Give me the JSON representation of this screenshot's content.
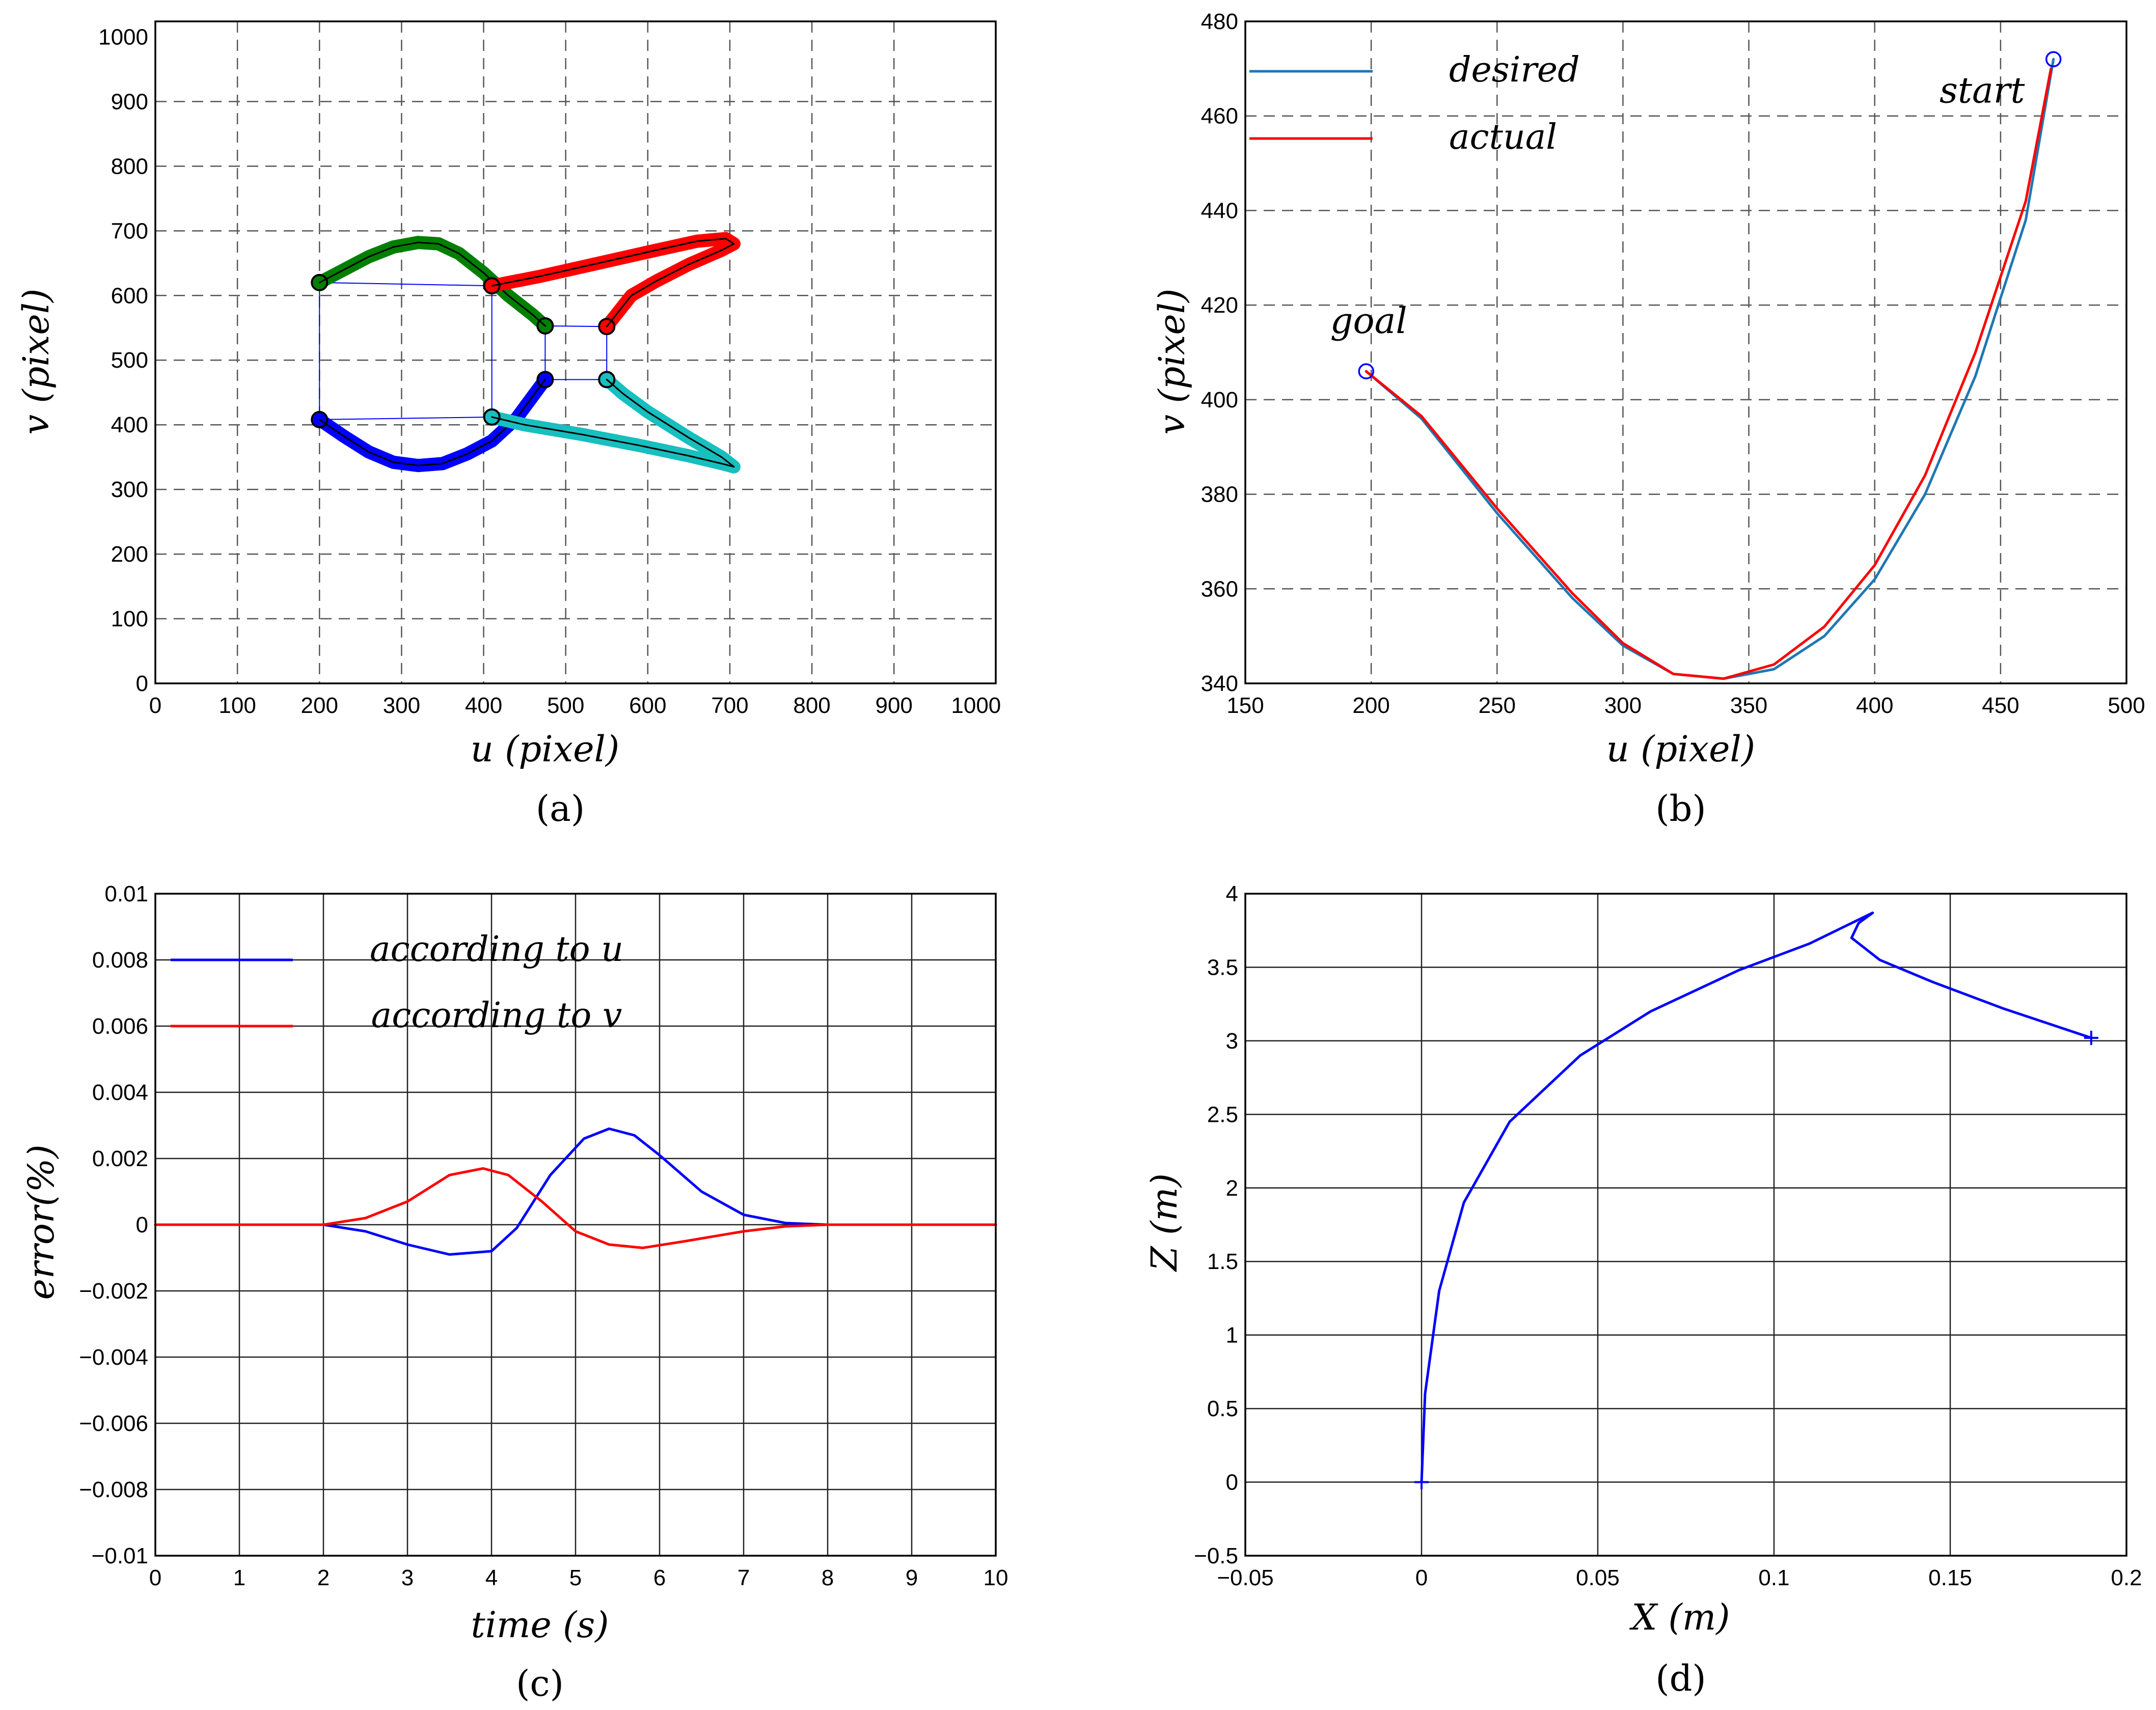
{
  "chart_data": [
    {
      "id": "a",
      "type": "line",
      "caption": "(a)",
      "xlabel": "u (pixel)",
      "ylabel": "v (pixel)",
      "xlim": [
        0,
        1024
      ],
      "ylim": [
        0,
        1024
      ],
      "xticks": [
        0,
        100,
        200,
        300,
        400,
        500,
        600,
        700,
        800,
        900,
        1000
      ],
      "yticks": [
        0,
        100,
        200,
        300,
        400,
        500,
        600,
        700,
        800,
        900,
        1000
      ],
      "grid": "dashed",
      "colors": {
        "green": "#007f00",
        "red": "#ff0000",
        "blue": "#0000ff",
        "cyan": "#17bfbf",
        "box": "#0000ff"
      },
      "series": [
        {
          "name": "green",
          "points": [
            [
              200,
              620
            ],
            [
              230,
              640
            ],
            [
              260,
              660
            ],
            [
              290,
              675
            ],
            [
              320,
              682
            ],
            [
              345,
              680
            ],
            [
              370,
              665
            ],
            [
              400,
              635
            ],
            [
              430,
              600
            ],
            [
              460,
              570
            ],
            [
              475,
              553
            ]
          ]
        },
        {
          "name": "red",
          "points": [
            [
              410,
              615
            ],
            [
              470,
              630
            ],
            [
              540,
              650
            ],
            [
              610,
              670
            ],
            [
              660,
              684
            ],
            [
              695,
              688
            ],
            [
              705,
              680
            ],
            [
              690,
              670
            ],
            [
              650,
              648
            ],
            [
              610,
              622
            ],
            [
              580,
              600
            ],
            [
              550,
              552
            ]
          ]
        },
        {
          "name": "blue",
          "points": [
            [
              200,
              408
            ],
            [
              230,
              382
            ],
            [
              260,
              358
            ],
            [
              290,
              342
            ],
            [
              320,
              337
            ],
            [
              350,
              340
            ],
            [
              380,
              355
            ],
            [
              410,
              375
            ],
            [
              440,
              410
            ],
            [
              475,
              470
            ]
          ]
        },
        {
          "name": "cyan",
          "points": [
            [
              410,
              412
            ],
            [
              450,
              400
            ],
            [
              520,
              385
            ],
            [
              590,
              368
            ],
            [
              650,
              352
            ],
            [
              690,
              340
            ],
            [
              705,
              335
            ],
            [
              690,
              350
            ],
            [
              650,
              380
            ],
            [
              600,
              420
            ],
            [
              570,
              448
            ],
            [
              550,
              470
            ]
          ]
        }
      ],
      "boxes": [
        {
          "name": "initial-square",
          "points": [
            [
              200,
              620
            ],
            [
              410,
              615
            ],
            [
              410,
              412
            ],
            [
              200,
              408
            ]
          ]
        },
        {
          "name": "final-square",
          "points": [
            [
              475,
              553
            ],
            [
              550,
              552
            ],
            [
              550,
              470
            ],
            [
              475,
              470
            ]
          ]
        }
      ]
    },
    {
      "id": "b",
      "type": "line",
      "caption": "(b)",
      "xlabel": "u (pixel)",
      "ylabel": "v (pixel)",
      "xlim": [
        150,
        500
      ],
      "ylim": [
        340,
        480
      ],
      "xticks": [
        150,
        200,
        250,
        300,
        350,
        400,
        450,
        500
      ],
      "yticks": [
        340,
        360,
        380,
        400,
        420,
        440,
        460,
        480
      ],
      "grid": "dashed",
      "legend": [
        "desired",
        "actual"
      ],
      "annotations": {
        "start": "start",
        "goal": "goal"
      },
      "start_point": [
        471,
        472
      ],
      "goal_point": [
        198,
        406
      ],
      "series": [
        {
          "name": "desired",
          "color": "#1f77b4",
          "points": [
            [
              198,
              406
            ],
            [
              220,
              396
            ],
            [
              250,
              376
            ],
            [
              280,
              358
            ],
            [
              300,
              348
            ],
            [
              320,
              342
            ],
            [
              340,
              341
            ],
            [
              360,
              343
            ],
            [
              380,
              350
            ],
            [
              400,
              362
            ],
            [
              420,
              380
            ],
            [
              440,
              405
            ],
            [
              460,
              438
            ],
            [
              471,
              472
            ]
          ]
        },
        {
          "name": "actual",
          "color": "#ff0000",
          "points": [
            [
              198,
              406
            ],
            [
              220,
              396.5
            ],
            [
              250,
              377
            ],
            [
              280,
              359
            ],
            [
              300,
              348.5
            ],
            [
              320,
              342
            ],
            [
              340,
              341
            ],
            [
              360,
              344
            ],
            [
              380,
              352
            ],
            [
              400,
              365
            ],
            [
              420,
              384
            ],
            [
              440,
              410
            ],
            [
              460,
              442
            ],
            [
              470,
              470
            ]
          ]
        }
      ]
    },
    {
      "id": "c",
      "type": "line",
      "caption": "(c)",
      "xlabel": "time (s)",
      "ylabel": "error(%)",
      "xlim": [
        0,
        10
      ],
      "ylim": [
        -0.01,
        0.01
      ],
      "xticks": [
        0,
        1,
        2,
        3,
        4,
        5,
        6,
        7,
        8,
        9,
        10
      ],
      "yticks": [
        -0.01,
        -0.008,
        -0.006,
        -0.004,
        -0.002,
        0,
        0.002,
        0.004,
        0.006,
        0.008,
        0.01
      ],
      "ytick_labels": [
        "−0.01",
        "−0.008",
        "−0.006",
        "−0.004",
        "−0.002",
        "0",
        "0.002",
        "0.004",
        "0.006",
        "0.008",
        "0.01"
      ],
      "grid": "solid",
      "legend": [
        "according to u",
        "according to v"
      ],
      "series": [
        {
          "name": "according to u",
          "color": "#0000ff",
          "points": [
            [
              0,
              0
            ],
            [
              2,
              0
            ],
            [
              2.5,
              -0.0002
            ],
            [
              3,
              -0.0006
            ],
            [
              3.5,
              -0.0009
            ],
            [
              4,
              -0.0008
            ],
            [
              4.3,
              -0.0001
            ],
            [
              4.7,
              0.0015
            ],
            [
              5.1,
              0.0026
            ],
            [
              5.4,
              0.0029
            ],
            [
              5.7,
              0.0027
            ],
            [
              6,
              0.0021
            ],
            [
              6.5,
              0.001
            ],
            [
              7,
              0.0003
            ],
            [
              7.5,
              5e-05
            ],
            [
              8,
              0
            ],
            [
              10,
              0
            ]
          ]
        },
        {
          "name": "according to v",
          "color": "#ff0000",
          "points": [
            [
              0,
              0
            ],
            [
              2,
              0
            ],
            [
              2.5,
              0.0002
            ],
            [
              3,
              0.0007
            ],
            [
              3.5,
              0.0015
            ],
            [
              3.9,
              0.0017
            ],
            [
              4.2,
              0.0015
            ],
            [
              4.6,
              0.0007
            ],
            [
              5,
              -0.0002
            ],
            [
              5.4,
              -0.0006
            ],
            [
              5.8,
              -0.0007
            ],
            [
              6.3,
              -0.0005
            ],
            [
              7,
              -0.0002
            ],
            [
              7.5,
              -5e-05
            ],
            [
              8,
              0
            ],
            [
              10,
              0
            ]
          ]
        }
      ]
    },
    {
      "id": "d",
      "type": "line",
      "caption": "(d)",
      "xlabel": "X (m)",
      "ylabel": "Z (m)",
      "xlim": [
        -0.05,
        0.2
      ],
      "ylim": [
        -0.5,
        4
      ],
      "xticks": [
        -0.05,
        0,
        0.05,
        0.1,
        0.15,
        0.2
      ],
      "xtick_labels": [
        "−0.05",
        "0",
        "0.05",
        "0.1",
        "0.15",
        "0.2"
      ],
      "yticks": [
        -0.5,
        0,
        0.5,
        1,
        1.5,
        2,
        2.5,
        3,
        3.5,
        4
      ],
      "ytick_labels": [
        "−0.5",
        "0",
        "0.5",
        "1",
        "1.5",
        "2",
        "2.5",
        "3",
        "3.5",
        "4"
      ],
      "grid": "solid",
      "series": [
        {
          "name": "trajectory",
          "color": "#0000ff",
          "points": [
            [
              0,
              0
            ],
            [
              0.001,
              0.6
            ],
            [
              0.005,
              1.3
            ],
            [
              0.012,
              1.9
            ],
            [
              0.025,
              2.45
            ],
            [
              0.045,
              2.9
            ],
            [
              0.065,
              3.2
            ],
            [
              0.09,
              3.48
            ],
            [
              0.11,
              3.66
            ],
            [
              0.128,
              3.87
            ],
            [
              0.124,
              3.8
            ],
            [
              0.122,
              3.7
            ],
            [
              0.13,
              3.55
            ],
            [
              0.145,
              3.4
            ],
            [
              0.165,
              3.22
            ],
            [
              0.19,
              3.02
            ]
          ]
        }
      ],
      "markers": [
        [
          0,
          0
        ],
        [
          0.19,
          3.02
        ]
      ]
    }
  ]
}
